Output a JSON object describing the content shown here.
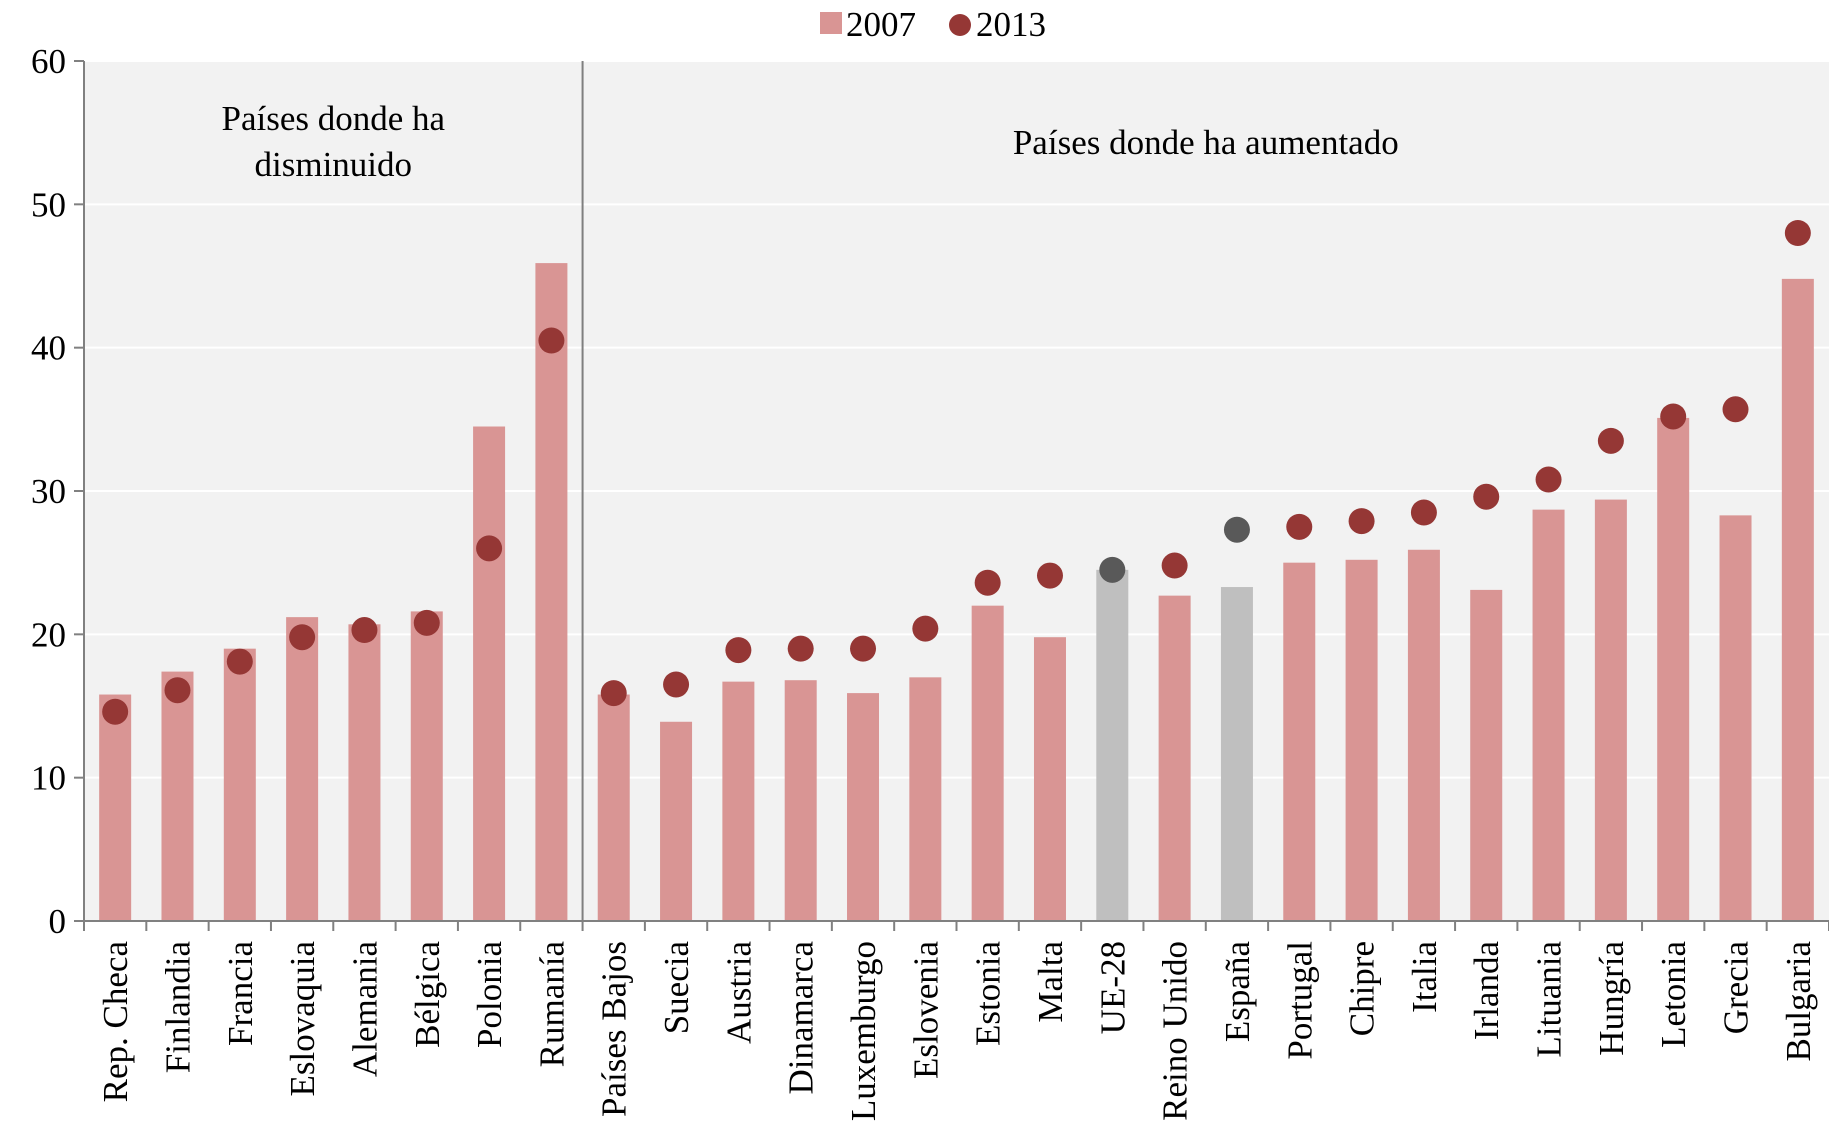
{
  "chart_data": {
    "type": "bar",
    "categories": [
      "Rep. Checa",
      "Finlandia",
      "Francia",
      "Eslovaquia",
      "Alemania",
      "Bélgica",
      "Polonia",
      "Rumanía",
      "Países Bajos",
      "Suecia",
      "Austria",
      "Dinamarca",
      "Luxemburgo",
      "Eslovenia",
      "Estonia",
      "Malta",
      "UE-28",
      "Reino Unido",
      "España",
      "Portugal",
      "Chipre",
      "Italia",
      "Irlanda",
      "Lituania",
      "Hungría",
      "Letonia",
      "Grecia",
      "Bulgaria"
    ],
    "series": [
      {
        "name": "2007",
        "kind": "bar",
        "values": [
          15.8,
          17.4,
          19.0,
          21.2,
          20.7,
          21.6,
          34.5,
          45.9,
          15.8,
          13.9,
          16.7,
          16.8,
          15.9,
          17.0,
          22.0,
          19.8,
          24.5,
          22.7,
          23.3,
          25.0,
          25.2,
          25.9,
          23.1,
          28.7,
          29.4,
          35.1,
          28.3,
          44.8
        ]
      },
      {
        "name": "2013",
        "kind": "dot",
        "values": [
          14.6,
          16.1,
          18.1,
          19.8,
          20.3,
          20.8,
          26.0,
          40.5,
          15.9,
          16.5,
          18.9,
          19.0,
          19.0,
          20.4,
          23.6,
          24.1,
          24.5,
          24.8,
          27.3,
          27.5,
          27.9,
          28.5,
          29.6,
          30.8,
          33.5,
          35.2,
          35.7,
          48.0
        ]
      }
    ],
    "highlight_categories": [
      "UE-28",
      "España"
    ],
    "colors": {
      "bar": "#d99594",
      "dot": "#953735",
      "highlight_bar": "#bfbfbf",
      "highlight_dot": "#595959",
      "plot_bg": "#f2f2f2",
      "grid": "#ffffff"
    },
    "ylim": [
      0,
      60
    ],
    "yticks": [
      0,
      10,
      20,
      30,
      40,
      50,
      60
    ],
    "grid": true,
    "legend_position": "top-center",
    "groups": [
      {
        "label_lines": [
          "Países donde  ha",
          "disminuido"
        ],
        "count": 8
      },
      {
        "label_lines": [
          "Países donde ha aumentado"
        ],
        "count": 20
      }
    ]
  }
}
